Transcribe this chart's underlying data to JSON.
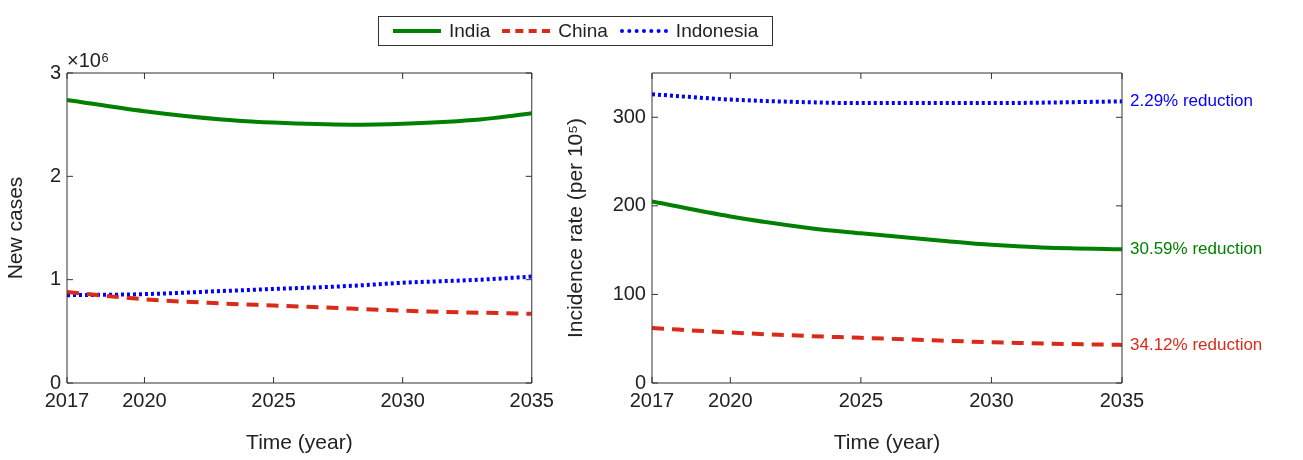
{
  "chart_data": [
    {
      "type": "line",
      "xlabel": "Time (year)",
      "ylabel": "New cases",
      "x": [
        2017,
        2020,
        2023,
        2025,
        2028,
        2030,
        2033,
        2035
      ],
      "series": [
        {
          "name": "India",
          "color": "#008000",
          "line_style": "solid",
          "values": [
            2.74,
            2.63,
            2.55,
            2.52,
            2.5,
            2.51,
            2.55,
            2.61
          ]
        },
        {
          "name": "China",
          "color": "#d92b1a",
          "line_style": "dashed",
          "values": [
            0.88,
            0.81,
            0.77,
            0.75,
            0.72,
            0.7,
            0.68,
            0.67
          ]
        },
        {
          "name": "Indonesia",
          "color": "#0000ff",
          "line_style": "dotted",
          "values": [
            0.85,
            0.86,
            0.89,
            0.91,
            0.94,
            0.97,
            1.0,
            1.03
          ]
        }
      ],
      "xlim": [
        2017,
        2035
      ],
      "xticks": [
        2017,
        2020,
        2025,
        2030,
        2035
      ],
      "ylim": [
        0,
        3
      ],
      "yticks": [
        0,
        1,
        2,
        3
      ],
      "annotations": [
        "×10⁶"
      ],
      "grid": false,
      "legend": "top",
      "marker": "none"
    },
    {
      "type": "line",
      "xlabel": "Time (year)",
      "ylabel": "Incidence rate (per 10⁵)",
      "x": [
        2017,
        2020,
        2023,
        2025,
        2028,
        2030,
        2033,
        2035
      ],
      "series": [
        {
          "color": "#008000",
          "line_style": "solid",
          "values": [
            205,
            188,
            175,
            169,
            161,
            156,
            152,
            151
          ]
        },
        {
          "color": "#d92b1a",
          "line_style": "dashed",
          "values": [
            62,
            57,
            53,
            51,
            48,
            46,
            44,
            43
          ]
        },
        {
          "color": "#0000ff",
          "line_style": "dotted",
          "values": [
            326,
            320,
            317,
            316,
            316,
            316,
            317,
            318
          ]
        }
      ],
      "xlim": [
        2017,
        2035
      ],
      "xticks": [
        2017,
        2020,
        2025,
        2030,
        2035
      ],
      "ylim": [
        0,
        350
      ],
      "yticks": [
        0,
        100,
        200,
        300
      ],
      "annotations": [
        "2.29% reduction",
        "30.59% reduction",
        "34.12% reduction"
      ],
      "grid": false,
      "legend": false,
      "marker": "none"
    }
  ]
}
